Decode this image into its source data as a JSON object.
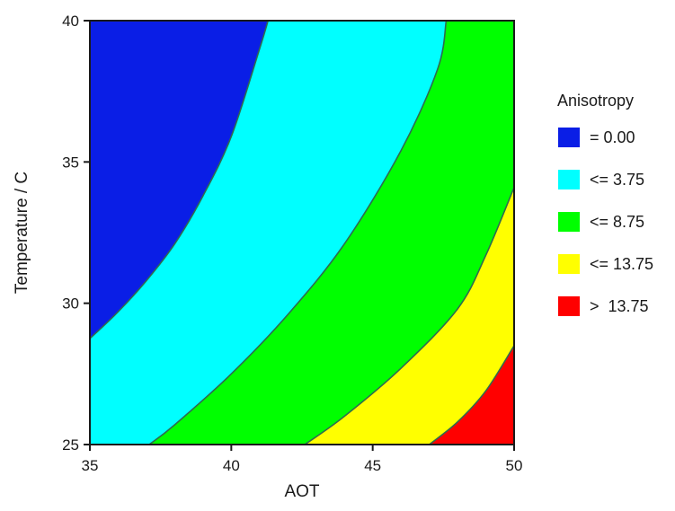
{
  "chart_data": {
    "type": "contour",
    "title": "",
    "xlabel": "AOT",
    "ylabel": "Temperature / C",
    "xlim": [
      35,
      50
    ],
    "ylim": [
      25,
      40
    ],
    "xticks": [
      35,
      40,
      45,
      50
    ],
    "yticks": [
      25,
      30,
      35,
      40
    ],
    "grid": false,
    "legend": {
      "title": "Anisotropy",
      "placement": "right",
      "entries": [
        {
          "label": "= 0.00",
          "color": "#0a1ee6"
        },
        {
          "label": "<= 3.75",
          "color": "#00ffff"
        },
        {
          "label": "<= 8.75",
          "color": "#00ff00"
        },
        {
          "label": "<= 13.75",
          "color": "#ffff00"
        },
        {
          "label": ">  13.75",
          "color": "#ff0000"
        }
      ]
    },
    "contour_lines": [
      {
        "level": 0.0,
        "points": [
          [
            35,
            28.75
          ],
          [
            36,
            29.7
          ],
          [
            37,
            30.8
          ],
          [
            38,
            32.1
          ],
          [
            39,
            33.8
          ],
          [
            40,
            35.9
          ],
          [
            41,
            39.0
          ],
          [
            41.3,
            40
          ]
        ]
      },
      {
        "level": 3.75,
        "points": [
          [
            37.1,
            25
          ],
          [
            38,
            25.7
          ],
          [
            40,
            27.5
          ],
          [
            42,
            29.6
          ],
          [
            44,
            32.1
          ],
          [
            46,
            35.4
          ],
          [
            47.3,
            38.3
          ],
          [
            47.6,
            40
          ]
        ]
      },
      {
        "level": 8.75,
        "points": [
          [
            42.6,
            25
          ],
          [
            44,
            26.0
          ],
          [
            46,
            27.7
          ],
          [
            48,
            29.8
          ],
          [
            49,
            31.7
          ],
          [
            50,
            34.1
          ]
        ]
      },
      {
        "level": 13.75,
        "points": [
          [
            47.0,
            25
          ],
          [
            48,
            25.8
          ],
          [
            49,
            26.9
          ],
          [
            50,
            28.5
          ]
        ]
      }
    ]
  }
}
